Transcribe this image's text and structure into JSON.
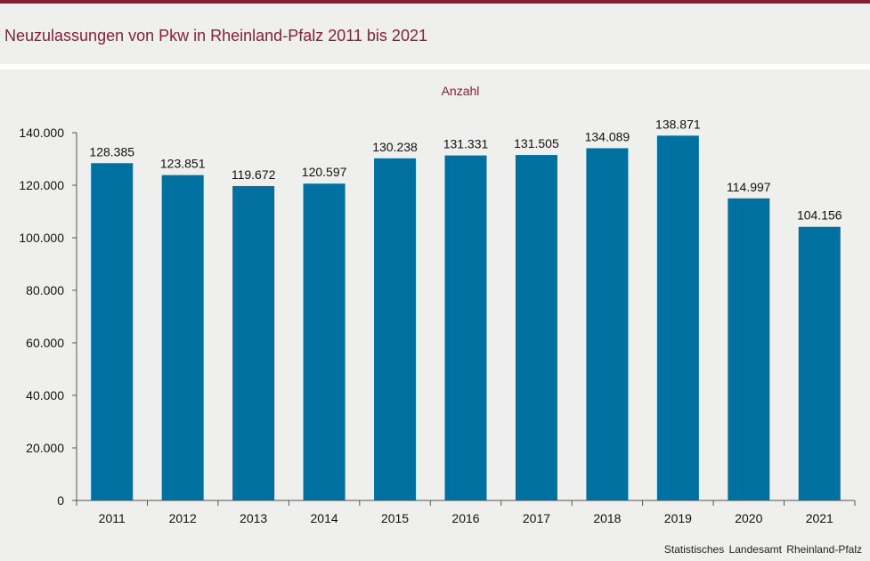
{
  "header": {
    "title": "Neuzulassungen von Pkw in Rheinland-Pfalz 2011 bis 2021"
  },
  "footer": {
    "source": "Statistisches Landesamt Rheinland-Pfalz"
  },
  "colors": {
    "accent": "#8a1f3a",
    "bar": "#0070a0",
    "background": "#efefed"
  },
  "chart_data": {
    "type": "bar",
    "title": "Neuzulassungen von Pkw in Rheinland-Pfalz 2011 bis 2021",
    "unit_label": "Anzahl",
    "xlabel": "",
    "ylabel": "",
    "categories": [
      "2011",
      "2012",
      "2013",
      "2014",
      "2015",
      "2016",
      "2017",
      "2018",
      "2019",
      "2020",
      "2021"
    ],
    "values": [
      128385,
      123851,
      119672,
      120597,
      130238,
      131331,
      131505,
      134089,
      138871,
      114997,
      104156
    ],
    "value_labels": [
      "128.385",
      "123.851",
      "119.672",
      "120.597",
      "130.238",
      "131.331",
      "131.505",
      "134.089",
      "138.871",
      "114.997",
      "104.156"
    ],
    "ylim": [
      0,
      140000
    ],
    "yticks": [
      0,
      20000,
      40000,
      60000,
      80000,
      100000,
      120000,
      140000
    ],
    "ytick_labels": [
      "0",
      "20.000",
      "40.000",
      "60.000",
      "80.000",
      "100.000",
      "120.000",
      "140.000"
    ],
    "grid": false,
    "legend": "none"
  }
}
